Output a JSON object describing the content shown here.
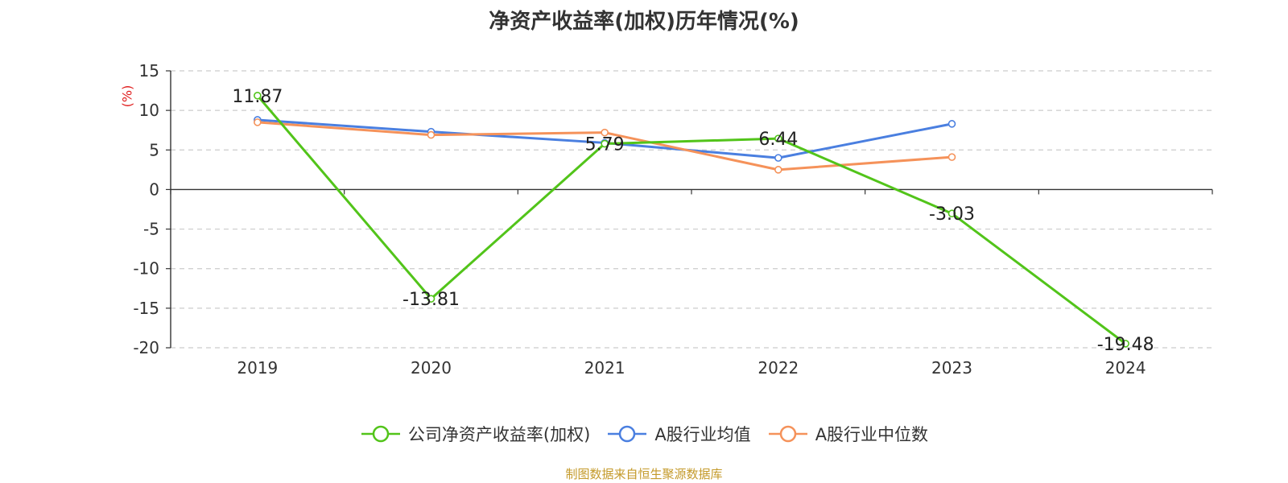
{
  "chart_data": {
    "type": "line",
    "title": "净资产收益率(加权)历年情况(%)",
    "ylabel": "(%)",
    "xlabel": "",
    "categories": [
      "2019",
      "2020",
      "2021",
      "2022",
      "2023",
      "2024"
    ],
    "ylim": [
      -20,
      15
    ],
    "yticks": [
      15,
      10,
      5,
      0,
      -5,
      -10,
      -15,
      -20
    ],
    "grid": true,
    "legend_position": "bottom",
    "series": [
      {
        "name": "公司净资产收益率(加权)",
        "color": "#52c41a",
        "values": [
          11.87,
          -13.81,
          5.79,
          6.44,
          -3.03,
          -19.48
        ],
        "labels": [
          "11.87",
          "-13.81",
          "5.79",
          "6.44",
          "-3.03",
          "-19.48"
        ]
      },
      {
        "name": "A股行业均值",
        "color": "#4a7fe0",
        "values": [
          8.8,
          7.3,
          5.9,
          4.0,
          8.3,
          null
        ]
      },
      {
        "name": "A股行业中位数",
        "color": "#f5925a",
        "values": [
          8.5,
          6.9,
          7.2,
          2.5,
          4.1,
          null
        ]
      }
    ]
  },
  "ylabel_color": "#e02020",
  "source": {
    "text": "制图数据来自恒生聚源数据库",
    "color": "#c49a2a"
  }
}
